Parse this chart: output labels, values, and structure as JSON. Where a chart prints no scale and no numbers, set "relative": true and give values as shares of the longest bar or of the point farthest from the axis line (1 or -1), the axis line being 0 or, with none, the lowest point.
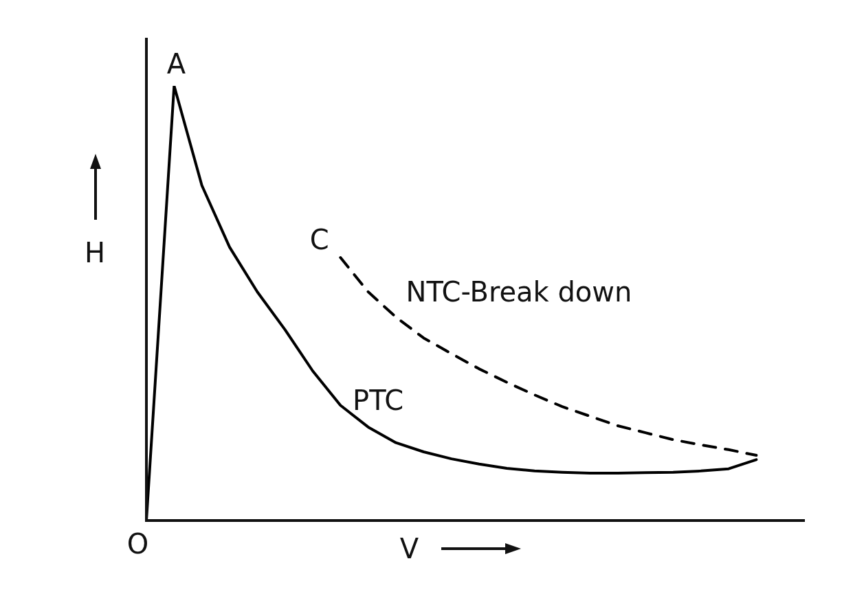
{
  "chart_data": {
    "type": "line",
    "relative": true,
    "xlabel": "V",
    "ylabel": "H",
    "categories": [
      null,
      null,
      null,
      null,
      null,
      null,
      null,
      null,
      null,
      null,
      null,
      null,
      null,
      null,
      null,
      null,
      null,
      null,
      null,
      null,
      null,
      null,
      null,
      null,
      null
    ],
    "series": [
      {
        "name": "PTC",
        "color": "#000000",
        "line_style": "solid",
        "values": [
          0,
          1,
          0.771,
          0.629,
          0.526,
          0.439,
          0.344,
          0.265,
          0.215,
          0.179,
          0.158,
          0.142,
          0.13,
          0.12,
          0.114,
          0.111,
          0.109,
          0.109,
          0.11,
          0.111,
          0.114,
          0.119,
          0.14,
          null,
          null
        ]
      },
      {
        "name": "NTC-Break down",
        "color": "#000000",
        "line_style": "dashed",
        "values": [
          null,
          null,
          null,
          null,
          null,
          null,
          null,
          0.605,
          0.526,
          0.468,
          0.42,
          0.384,
          0.349,
          0.318,
          0.289,
          0.262,
          0.24,
          0.218,
          0.202,
          0.186,
          0.174,
          0.163,
          0.15,
          null,
          null
        ]
      }
    ],
    "annotations": [
      "A",
      "C",
      "O"
    ],
    "legend": false,
    "marker": "none",
    "tick_labels": false
  }
}
